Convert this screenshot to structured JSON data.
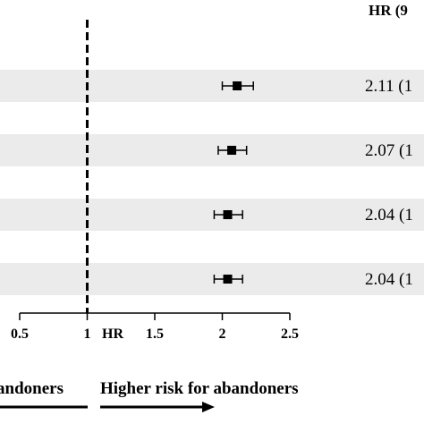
{
  "chart_data": {
    "type": "forest",
    "column_header": "HR (9",
    "x_axis_label": "HR",
    "xlim": [
      0.5,
      2.5
    ],
    "ticks": [
      {
        "value": 0.5,
        "label": "0.5"
      },
      {
        "value": 1,
        "label": "1"
      },
      {
        "value": 1.5,
        "label": "1.5"
      },
      {
        "value": 2,
        "label": "2"
      },
      {
        "value": 2.5,
        "label": "2.5"
      }
    ],
    "reference_line": 1,
    "rows": [
      {
        "hr": 2.11,
        "lower": 2.0,
        "upper": 2.23,
        "text": "2.11 (1"
      },
      {
        "hr": 2.07,
        "lower": 1.97,
        "upper": 2.18,
        "text": "2.07 (1"
      },
      {
        "hr": 2.04,
        "lower": 1.94,
        "upper": 2.15,
        "text": "2.04 (1"
      },
      {
        "hr": 2.04,
        "lower": 1.94,
        "upper": 2.15,
        "text": "2.04 (1"
      }
    ],
    "left_caption": "andoners",
    "right_caption": "Higher risk for abandoners",
    "colors": {
      "band": "#ebebeb",
      "mark": "#000000",
      "text": "#000000"
    }
  }
}
